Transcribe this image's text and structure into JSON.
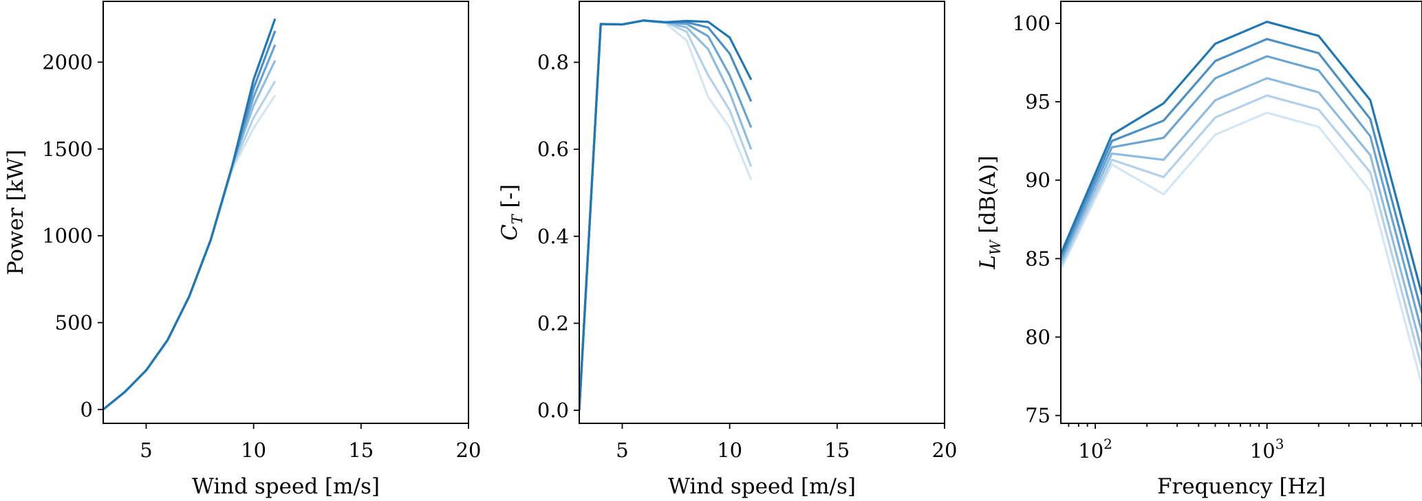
{
  "chart_data": [
    {
      "type": "line",
      "xlabel": "Wind speed [m/s]",
      "ylabel": "Power [kW]",
      "xlim": [
        3,
        20
      ],
      "ylim": [
        -80,
        2350
      ],
      "xticks": [
        5,
        10,
        15,
        20
      ],
      "yticks": [
        0,
        500,
        1000,
        1500,
        2000
      ],
      "grid": false,
      "colors": [
        "#d4e5f3",
        "#b3d1ea",
        "#8fbcdf",
        "#6aa5d2",
        "#4a8fc5",
        "#1f77b4"
      ],
      "x": [
        3,
        4,
        5,
        6,
        7,
        8,
        9,
        10,
        11
      ],
      "series": [
        {
          "values": [
            0,
            100,
            225,
            400,
            650,
            975,
            1380,
            1620,
            1810
          ]
        },
        {
          "values": [
            0,
            100,
            225,
            400,
            650,
            975,
            1390,
            1680,
            1890
          ]
        },
        {
          "values": [
            0,
            100,
            225,
            400,
            650,
            975,
            1400,
            1750,
            2010
          ]
        },
        {
          "values": [
            0,
            100,
            225,
            400,
            650,
            975,
            1400,
            1800,
            2100
          ]
        },
        {
          "values": [
            0,
            100,
            225,
            400,
            650,
            975,
            1400,
            1850,
            2180
          ]
        },
        {
          "values": [
            0,
            100,
            225,
            400,
            650,
            975,
            1400,
            1900,
            2250
          ]
        }
      ]
    },
    {
      "type": "line",
      "xlabel": "Wind speed [m/s]",
      "ylabel": "C",
      "ylabel_sub": "T",
      "ylabel_suffix": " [-]",
      "xlim": [
        3,
        20
      ],
      "ylim": [
        -0.03,
        0.94
      ],
      "xticks": [
        5,
        10,
        15,
        20
      ],
      "yticks": [
        "0.0",
        "0.2",
        "0.4",
        "0.6",
        "0.8"
      ],
      "grid": false,
      "colors": [
        "#d4e5f3",
        "#b3d1ea",
        "#8fbcdf",
        "#6aa5d2",
        "#4a8fc5",
        "#1f77b4"
      ],
      "x": [
        3,
        4,
        5,
        6,
        7,
        8,
        9,
        10,
        11
      ],
      "series": [
        {
          "values": [
            0.0,
            0.888,
            0.887,
            0.896,
            0.89,
            0.85,
            0.72,
            0.65,
            0.53
          ]
        },
        {
          "values": [
            0.0,
            0.888,
            0.887,
            0.896,
            0.892,
            0.87,
            0.77,
            0.69,
            0.56
          ]
        },
        {
          "values": [
            0.0,
            0.888,
            0.887,
            0.896,
            0.892,
            0.88,
            0.83,
            0.73,
            0.6
          ]
        },
        {
          "values": [
            0.0,
            0.888,
            0.887,
            0.896,
            0.892,
            0.888,
            0.86,
            0.77,
            0.65
          ]
        },
        {
          "values": [
            0.0,
            0.888,
            0.887,
            0.896,
            0.892,
            0.892,
            0.88,
            0.82,
            0.71
          ]
        },
        {
          "values": [
            0.0,
            0.888,
            0.887,
            0.896,
            0.892,
            0.895,
            0.893,
            0.857,
            0.76
          ]
        }
      ]
    },
    {
      "type": "line",
      "xlabel": "Frequency [Hz]",
      "ylabel": "L",
      "ylabel_sub": "W",
      "ylabel_suffix": " [dB(A)]",
      "xscale": "log",
      "xlim": [
        63,
        8000
      ],
      "ylim": [
        74.5,
        101.4
      ],
      "xticks": [
        100,
        1000
      ],
      "xticklabels": [
        {
          "base": "10",
          "exp": "2"
        },
        {
          "base": "10",
          "exp": "3"
        }
      ],
      "yticks": [
        75,
        80,
        85,
        90,
        95,
        100
      ],
      "grid": false,
      "colors": [
        "#d4e5f3",
        "#b3d1ea",
        "#8fbcdf",
        "#6aa5d2",
        "#4a8fc5",
        "#1f77b4"
      ],
      "x": [
        63,
        125,
        250,
        500,
        1000,
        2000,
        4000,
        8000
      ],
      "series": [
        {
          "values": [
            84.3,
            91.0,
            89.1,
            92.9,
            94.3,
            93.4,
            89.3,
            76.9
          ]
        },
        {
          "values": [
            84.5,
            91.3,
            90.2,
            94.0,
            95.4,
            94.5,
            90.5,
            78.0
          ]
        },
        {
          "values": [
            84.7,
            91.7,
            91.3,
            95.1,
            96.5,
            95.6,
            91.6,
            79.1
          ]
        },
        {
          "values": [
            84.9,
            92.1,
            92.7,
            96.5,
            97.9,
            97.0,
            92.8,
            80.3
          ]
        },
        {
          "values": [
            85.1,
            92.5,
            93.8,
            97.6,
            99.0,
            98.1,
            93.9,
            81.5
          ]
        },
        {
          "values": [
            85.3,
            92.9,
            94.9,
            98.7,
            100.1,
            99.2,
            95.1,
            82.7
          ]
        }
      ]
    }
  ]
}
